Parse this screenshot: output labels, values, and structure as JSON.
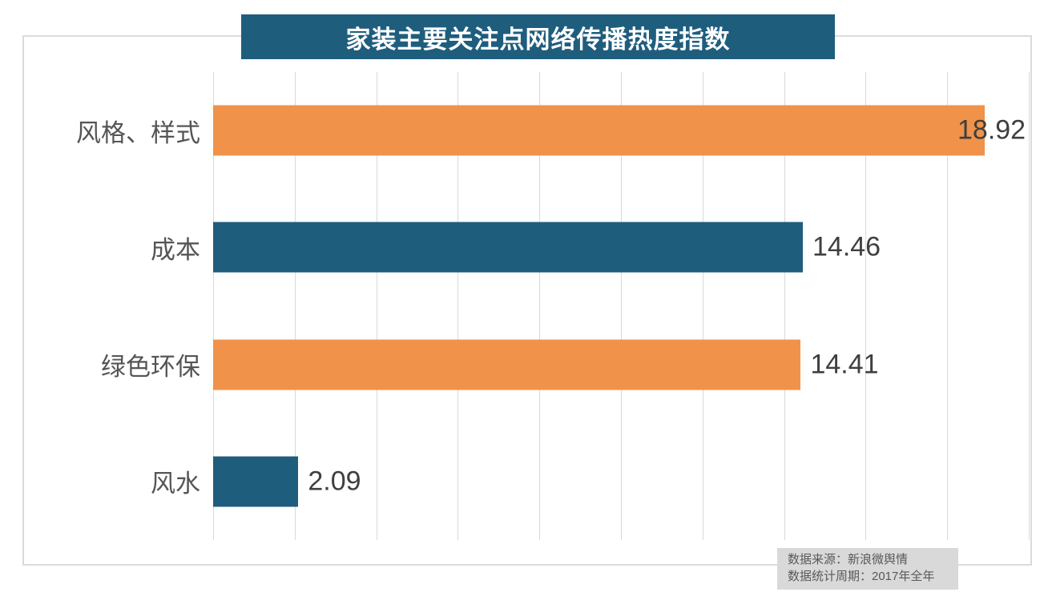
{
  "title": "家装主要关注点网络传播热度指数",
  "source": {
    "line1": "数据来源：新浪微舆情",
    "line2": "数据统计周期：2017年全年"
  },
  "colors": {
    "banner_bg": "#1F5D7D",
    "bar_teal": "#1F5D7D",
    "bar_orange": "#F0924A",
    "gridline": "#D9D9D9",
    "frame_border": "#DBDBDB",
    "category_text": "#555555",
    "value_text": "#3F3F3F",
    "title_text": "#FFFFFF",
    "source_bg": "#D9D9D9",
    "source_text": "#595959"
  },
  "chart_data": {
    "type": "bar",
    "orientation": "horizontal",
    "title": "家装主要关注点网络传播热度指数",
    "categories": [
      "风格、样式",
      "成本",
      "绿色环保",
      "风水"
    ],
    "values": [
      18.92,
      14.46,
      14.41,
      2.09
    ],
    "value_labels": [
      "18.92",
      "14.46",
      "14.41",
      "2.09"
    ],
    "bar_colors": [
      "#F0924A",
      "#1F5D7D",
      "#F0924A",
      "#1F5D7D"
    ],
    "xlim": [
      0,
      20
    ],
    "grid_interval": 2,
    "grid": true,
    "tick_labels_visible": false,
    "legend": false,
    "annotations": [
      "数据来源：新浪微舆情",
      "数据统计周期：2017年全年"
    ]
  }
}
